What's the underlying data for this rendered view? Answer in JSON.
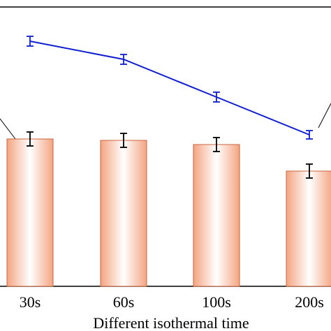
{
  "chart_data": {
    "type": "bar",
    "categories": [
      "30s",
      "60s",
      "100s",
      "200s"
    ],
    "xlabel": "Different isothermal time",
    "series": [
      {
        "kind": "bar",
        "values": [
          211,
          209,
          203,
          165
        ],
        "errors": [
          10,
          10,
          10,
          10
        ],
        "color": "#f4a582"
      },
      {
        "kind": "line",
        "values": [
          351,
          325,
          271,
          217
        ],
        "errors": [
          7,
          7,
          7,
          6
        ],
        "color": "#1020d0"
      }
    ],
    "ylim": [
      0,
      400
    ]
  }
}
